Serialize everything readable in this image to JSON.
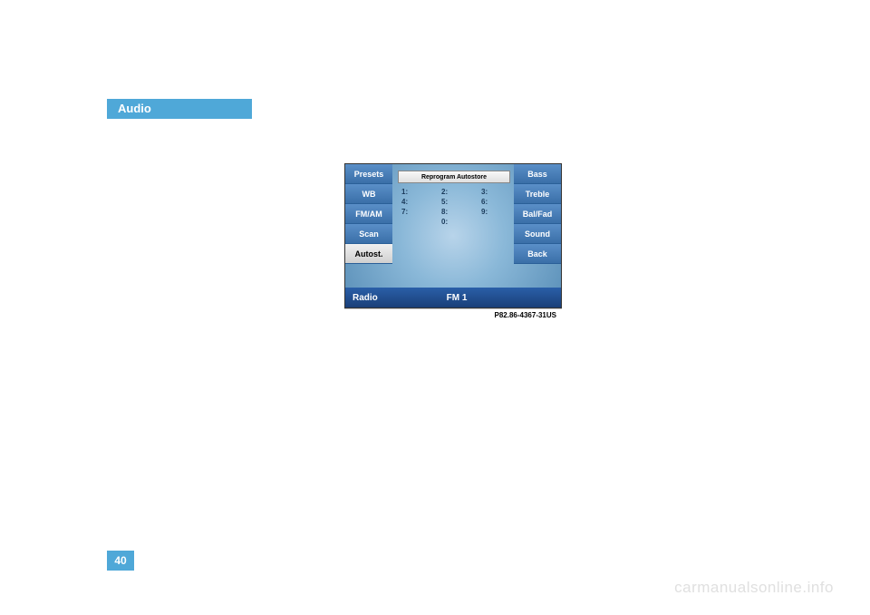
{
  "header": {
    "title": "Audio"
  },
  "page_number": "40",
  "watermark": "carmanualsonline.info",
  "photo_ref": "P82.86-4367-31US",
  "radio": {
    "reprogram_label": "Reprogram Autostore",
    "left_buttons": [
      {
        "label": "Presets",
        "active": false
      },
      {
        "label": "WB",
        "active": false
      },
      {
        "label": "FM/AM",
        "active": false
      },
      {
        "label": "Scan",
        "active": false
      },
      {
        "label": "Autost.",
        "active": true
      }
    ],
    "right_buttons": [
      {
        "label": "Bass",
        "active": false
      },
      {
        "label": "Treble",
        "active": false
      },
      {
        "label": "Bal/Fad",
        "active": false
      },
      {
        "label": "Sound",
        "active": false
      },
      {
        "label": "Back",
        "active": false
      }
    ],
    "presets": [
      "1:",
      "2:",
      "3:",
      "4:",
      "5:",
      "6:",
      "7:",
      "8:",
      "9:",
      "",
      "0:",
      ""
    ],
    "status": {
      "mode": "Radio",
      "band": "FM 1"
    }
  }
}
